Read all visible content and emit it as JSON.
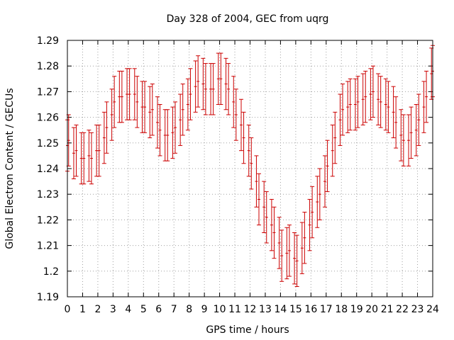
{
  "chart_data": {
    "type": "scatter",
    "title": "Day 328 of 2004, GEC from uqrg",
    "xlabel": "GPS time / hours",
    "ylabel": "Global Electron Content / GECUs",
    "xlim": [
      0,
      24
    ],
    "ylim": [
      1.19,
      1.29
    ],
    "xticks": [
      "0",
      "1",
      "2",
      "3",
      "4",
      "5",
      "6",
      "7",
      "8",
      "9",
      "10",
      "11",
      "12",
      "13",
      "14",
      "15",
      "16",
      "17",
      "18",
      "19",
      "20",
      "21",
      "22",
      "23",
      "24"
    ],
    "yticks": [
      "1.19",
      "1.2",
      "1.21",
      "1.22",
      "1.23",
      "1.24",
      "1.25",
      "1.26",
      "1.27",
      "1.28",
      "1.29"
    ],
    "grid": true,
    "error_bars": true,
    "color": "#cc0000",
    "x": [
      0.0,
      0.083,
      0.417,
      0.583,
      0.917,
      1.083,
      1.417,
      1.583,
      1.917,
      2.083,
      2.417,
      2.583,
      2.917,
      3.083,
      3.417,
      3.583,
      3.917,
      4.083,
      4.417,
      4.583,
      4.917,
      5.083,
      5.417,
      5.583,
      5.917,
      6.083,
      6.417,
      6.583,
      6.917,
      7.083,
      7.417,
      7.583,
      7.917,
      8.083,
      8.417,
      8.583,
      8.917,
      9.083,
      9.417,
      9.583,
      9.917,
      10.083,
      10.417,
      10.583,
      10.917,
      11.083,
      11.417,
      11.583,
      11.917,
      12.083,
      12.417,
      12.583,
      12.917,
      13.083,
      13.417,
      13.583,
      13.917,
      14.083,
      14.417,
      14.583,
      14.917,
      15.083,
      15.417,
      15.583,
      15.917,
      16.083,
      16.417,
      16.583,
      16.917,
      17.083,
      17.417,
      17.583,
      17.917,
      18.083,
      18.417,
      18.583,
      18.917,
      19.083,
      19.417,
      19.583,
      19.917,
      20.083,
      20.417,
      20.583,
      20.917,
      21.083,
      21.417,
      21.583,
      21.917,
      22.083,
      22.417,
      22.583,
      22.917,
      23.083,
      23.417,
      23.583,
      23.917,
      24.0
    ],
    "y": [
      1.249,
      1.251,
      1.246,
      1.247,
      1.244,
      1.244,
      1.245,
      1.244,
      1.247,
      1.247,
      1.252,
      1.256,
      1.261,
      1.266,
      1.268,
      1.268,
      1.269,
      1.269,
      1.269,
      1.266,
      1.264,
      1.264,
      1.262,
      1.263,
      1.258,
      1.255,
      1.253,
      1.253,
      1.254,
      1.256,
      1.259,
      1.263,
      1.265,
      1.269,
      1.272,
      1.274,
      1.273,
      1.271,
      1.271,
      1.271,
      1.275,
      1.275,
      1.273,
      1.271,
      1.266,
      1.261,
      1.257,
      1.252,
      1.247,
      1.242,
      1.235,
      1.228,
      1.225,
      1.221,
      1.218,
      1.215,
      1.211,
      1.206,
      1.207,
      1.208,
      1.205,
      1.204,
      1.209,
      1.213,
      1.218,
      1.223,
      1.227,
      1.23,
      1.235,
      1.241,
      1.247,
      1.252,
      1.259,
      1.263,
      1.264,
      1.265,
      1.265,
      1.266,
      1.267,
      1.268,
      1.269,
      1.27,
      1.267,
      1.266,
      1.265,
      1.264,
      1.262,
      1.258,
      1.253,
      1.251,
      1.251,
      1.254,
      1.255,
      1.259,
      1.264,
      1.268,
      1.277,
      1.278
    ],
    "err": [
      0.01,
      0.01,
      0.01,
      0.01,
      0.01,
      0.01,
      0.01,
      0.01,
      0.01,
      0.01,
      0.01,
      0.01,
      0.01,
      0.01,
      0.01,
      0.01,
      0.01,
      0.01,
      0.01,
      0.01,
      0.01,
      0.01,
      0.01,
      0.01,
      0.01,
      0.01,
      0.01,
      0.01,
      0.01,
      0.01,
      0.01,
      0.01,
      0.01,
      0.01,
      0.01,
      0.01,
      0.01,
      0.01,
      0.01,
      0.01,
      0.01,
      0.01,
      0.01,
      0.01,
      0.01,
      0.01,
      0.01,
      0.01,
      0.01,
      0.01,
      0.01,
      0.01,
      0.01,
      0.01,
      0.01,
      0.01,
      0.01,
      0.01,
      0.01,
      0.01,
      0.01,
      0.01,
      0.01,
      0.01,
      0.01,
      0.01,
      0.01,
      0.01,
      0.01,
      0.01,
      0.01,
      0.01,
      0.01,
      0.01,
      0.01,
      0.01,
      0.01,
      0.01,
      0.01,
      0.01,
      0.01,
      0.01,
      0.01,
      0.01,
      0.01,
      0.01,
      0.01,
      0.01,
      0.01,
      0.01,
      0.01,
      0.01,
      0.01,
      0.01,
      0.01,
      0.01,
      0.01,
      0.01
    ]
  }
}
